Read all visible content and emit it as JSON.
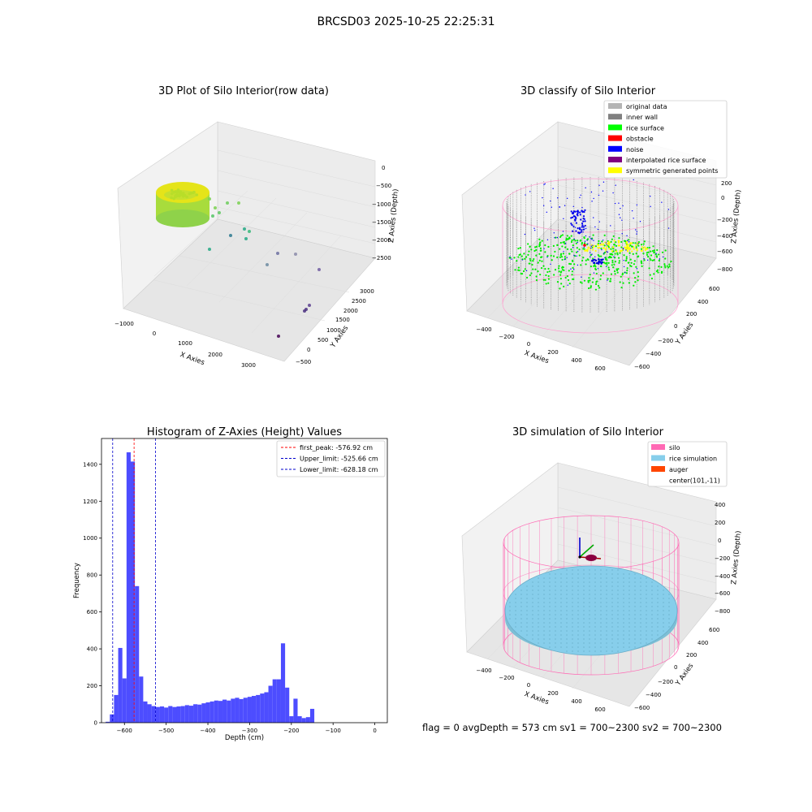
{
  "figure": {
    "suptitle": "BRCSD03 2025-10-25 22:25:31",
    "status_line": "flag = 0     avgDepth = 573 cm  sv1 = 700~2300  sv2 = 700~2300"
  },
  "raw_plot": {
    "title": "3D Plot of Silo Interior(row data)",
    "xlabel": "X Axies",
    "ylabel": "Y Axies",
    "zlabel": "Z Axies (Depth)",
    "xticks": [
      "−1000",
      "0",
      "1000",
      "2000",
      "3000"
    ],
    "yticks": [
      "−500",
      "0",
      "500",
      "1000",
      "1500",
      "2000",
      "2500",
      "3000"
    ],
    "zticks": [
      "0",
      "−500",
      "−1000",
      "−1500",
      "−2000",
      "−2500"
    ]
  },
  "classify_plot": {
    "title": "3D classify of Silo Interior",
    "xlabel": "X Axies",
    "ylabel": "Y Axies",
    "zlabel": "Z Axies (Depth)",
    "xticks": [
      "−400",
      "−200",
      "0",
      "200",
      "400",
      "600"
    ],
    "yticks": [
      "−600",
      "−400",
      "−200",
      "0",
      "200",
      "400",
      "600"
    ],
    "zticks": [
      "200",
      "0",
      "−200",
      "−400",
      "−600",
      "−800"
    ],
    "legend": [
      {
        "label": "original data",
        "color": "#b4b4b4"
      },
      {
        "label": "inner wall",
        "color": "#808080"
      },
      {
        "label": "rice surface",
        "color": "#00ff00"
      },
      {
        "label": "obstacle",
        "color": "#ff0000"
      },
      {
        "label": "noise",
        "color": "#0000ff"
      },
      {
        "label": "interpolated rice surface",
        "color": "#800080"
      },
      {
        "label": "symmetric generated points",
        "color": "#ffff00"
      }
    ]
  },
  "sim_plot": {
    "title": "3D simulation of Silo Interior",
    "xlabel": "X Axies",
    "ylabel": "Y Axies",
    "zlabel": "Z Axies (Depth)",
    "xticks": [
      "−400",
      "−200",
      "0",
      "200",
      "400",
      "600"
    ],
    "yticks": [
      "−600",
      "−400",
      "−200",
      "0",
      "200",
      "400",
      "600"
    ],
    "zticks": [
      "400",
      "200",
      "0",
      "−200",
      "−400",
      "−600",
      "−800"
    ],
    "legend": [
      {
        "label": "silo",
        "color": "#ff69b4"
      },
      {
        "label": "rice simulation",
        "color": "#87ceeb"
      },
      {
        "label": "auger",
        "color": "#ff4500"
      },
      {
        "label": "center(101,-11)",
        "color": ""
      }
    ]
  },
  "chart_data": {
    "type": "bar",
    "title": "Histogram of Z-Axies (Height) Values",
    "xlabel": "Depth (cm)",
    "ylabel": "Frequency",
    "xlim": [
      -655,
      30
    ],
    "ylim": [
      0,
      1540
    ],
    "bin_width": 10,
    "xticks": [
      -600,
      -500,
      -400,
      -300,
      -200,
      -100,
      0
    ],
    "yticks": [
      0,
      200,
      400,
      600,
      800,
      1000,
      1200,
      1400
    ],
    "bar_color": "#4d4dff",
    "grid": false,
    "legend_placement": "top-right",
    "bins": [
      {
        "x": -640,
        "v": 5
      },
      {
        "x": -630,
        "v": 45
      },
      {
        "x": -620,
        "v": 150
      },
      {
        "x": -610,
        "v": 405
      },
      {
        "x": -600,
        "v": 240
      },
      {
        "x": -590,
        "v": 1465
      },
      {
        "x": -580,
        "v": 1415
      },
      {
        "x": -570,
        "v": 740
      },
      {
        "x": -560,
        "v": 250
      },
      {
        "x": -550,
        "v": 115
      },
      {
        "x": -540,
        "v": 100
      },
      {
        "x": -530,
        "v": 90
      },
      {
        "x": -520,
        "v": 85
      },
      {
        "x": -510,
        "v": 88
      },
      {
        "x": -500,
        "v": 82
      },
      {
        "x": -490,
        "v": 90
      },
      {
        "x": -480,
        "v": 85
      },
      {
        "x": -470,
        "v": 88
      },
      {
        "x": -460,
        "v": 90
      },
      {
        "x": -450,
        "v": 95
      },
      {
        "x": -440,
        "v": 92
      },
      {
        "x": -430,
        "v": 100
      },
      {
        "x": -420,
        "v": 98
      },
      {
        "x": -410,
        "v": 105
      },
      {
        "x": -400,
        "v": 110
      },
      {
        "x": -390,
        "v": 115
      },
      {
        "x": -380,
        "v": 120
      },
      {
        "x": -370,
        "v": 118
      },
      {
        "x": -360,
        "v": 125
      },
      {
        "x": -350,
        "v": 120
      },
      {
        "x": -340,
        "v": 130
      },
      {
        "x": -330,
        "v": 135
      },
      {
        "x": -320,
        "v": 128
      },
      {
        "x": -310,
        "v": 135
      },
      {
        "x": -300,
        "v": 140
      },
      {
        "x": -290,
        "v": 145
      },
      {
        "x": -280,
        "v": 150
      },
      {
        "x": -270,
        "v": 158
      },
      {
        "x": -260,
        "v": 165
      },
      {
        "x": -250,
        "v": 200
      },
      {
        "x": -240,
        "v": 235
      },
      {
        "x": -230,
        "v": 235
      },
      {
        "x": -220,
        "v": 430
      },
      {
        "x": -210,
        "v": 190
      },
      {
        "x": -200,
        "v": 35
      },
      {
        "x": -190,
        "v": 130
      },
      {
        "x": -180,
        "v": 35
      },
      {
        "x": -170,
        "v": 25
      },
      {
        "x": -160,
        "v": 30
      },
      {
        "x": -150,
        "v": 75
      }
    ],
    "vlines": [
      {
        "label": "first_peak: -576.92 cm",
        "x": -576.92,
        "color": "#ff0000"
      },
      {
        "label": "Upper_limit: -525.66 cm",
        "x": -525.66,
        "color": "#0000cc"
      },
      {
        "label": "Lower_limit: -628.18 cm",
        "x": -628.18,
        "color": "#0000cc"
      }
    ]
  }
}
